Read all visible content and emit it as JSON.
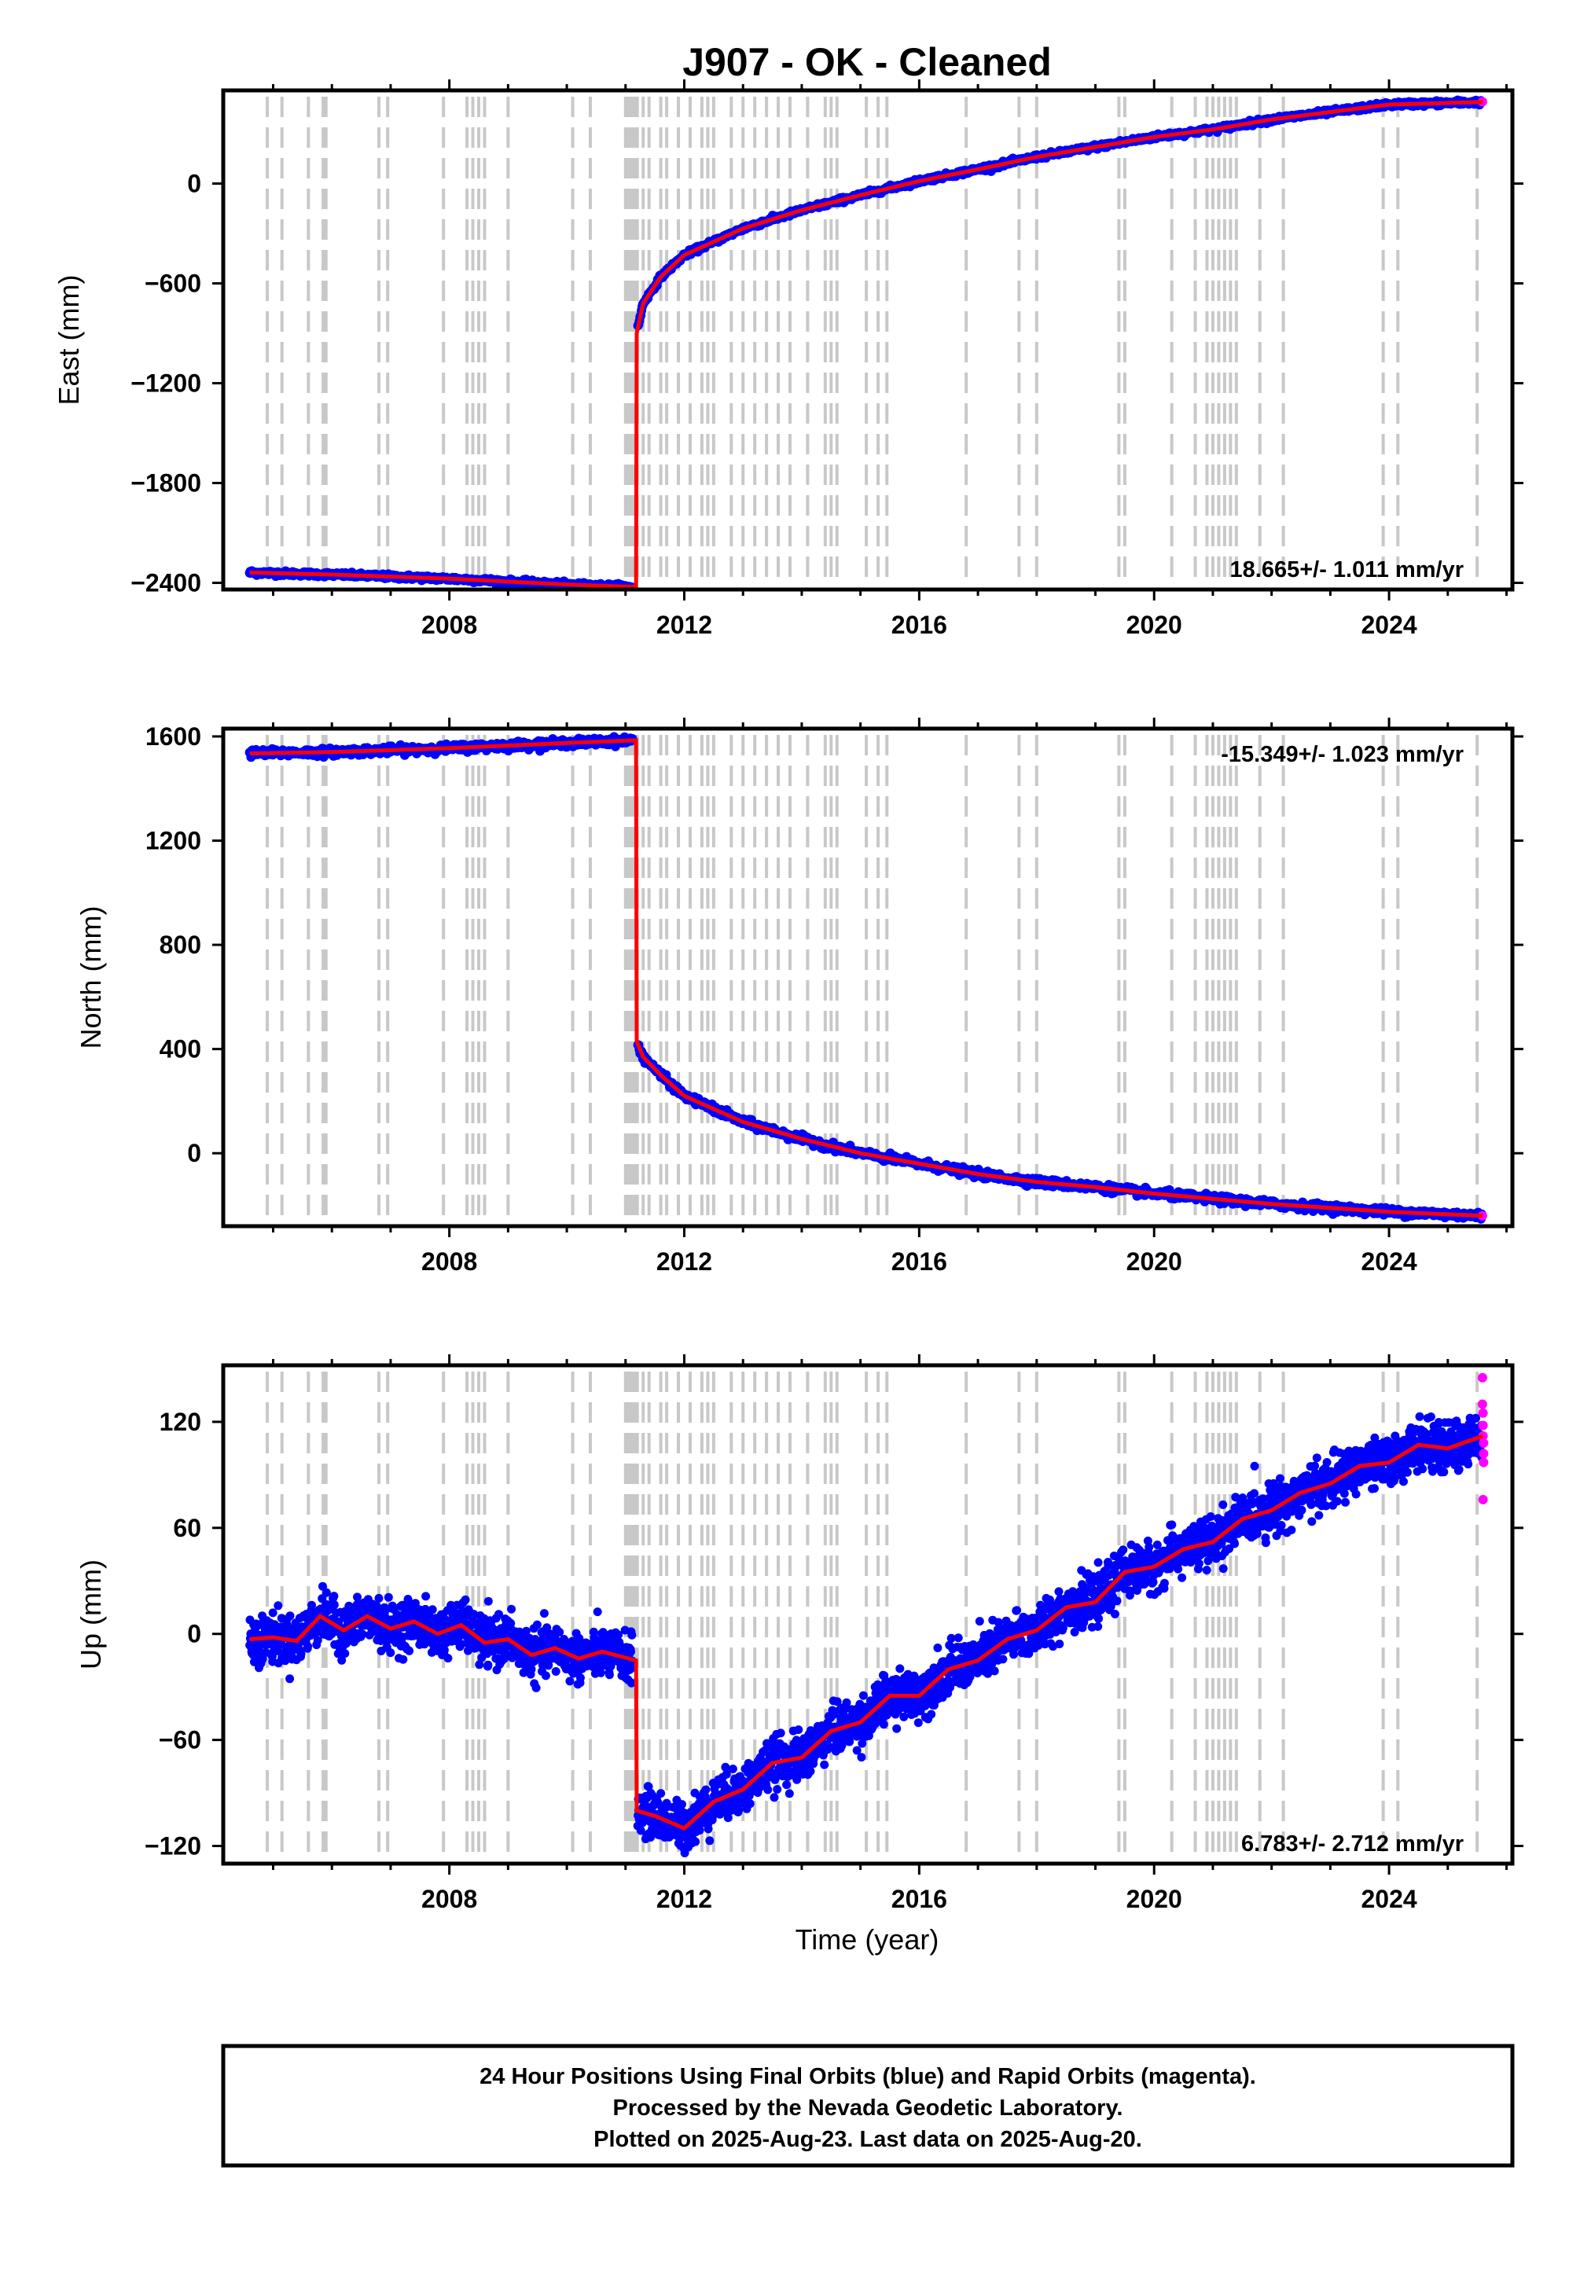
{
  "title": "J907  - OK - Cleaned",
  "xlabel": "Time (year)",
  "footer": {
    "line1": "24 Hour Positions Using Final Orbits (blue) and Rapid Orbits (magenta).",
    "line2": "Processed by the Nevada Geodetic Laboratory.",
    "line3": "Plotted on 2025-Aug-23. Last data on 2025-Aug-20."
  },
  "colors": {
    "final_orbit_points": "#0000ff",
    "rapid_orbit_points": "#ff00ff",
    "model_line": "#ff0000",
    "event_lines": "#c8c8c8"
  },
  "event_years": [
    2004.9,
    2005.15,
    2005.6,
    2005.85,
    2005.9,
    2006.8,
    2006.95,
    2007.9,
    2008.3,
    2008.4,
    2008.5,
    2008.6,
    2009.0,
    2010.1,
    2010.4,
    2011.0,
    2011.05,
    2011.1,
    2011.15,
    2011.2,
    2011.3,
    2011.4,
    2011.6,
    2011.7,
    2011.9,
    2012.1,
    2012.3,
    2012.4,
    2012.5,
    2012.8,
    2013.0,
    2013.2,
    2013.4,
    2013.6,
    2013.8,
    2014.1,
    2014.4,
    2014.5,
    2014.6,
    2015.1,
    2015.3,
    2015.45,
    2016.8,
    2017.7,
    2018.0,
    2019.4,
    2019.5,
    2020.3,
    2020.7,
    2020.9,
    2021.0,
    2021.1,
    2021.2,
    2021.3,
    2021.4,
    2021.8,
    2022.2,
    2023.9,
    2024.15,
    2025.5
  ],
  "chart_data": [
    {
      "type": "scatter",
      "panel": "east",
      "ylabel": "East (mm)",
      "xlim": [
        2004.15,
        2026.1
      ],
      "ylim": [
        -2440,
        560
      ],
      "xticks": [
        "2008",
        "2012",
        "2016",
        "2020",
        "2024"
      ],
      "yticks": [
        "0",
        "−600",
        "−1200",
        "−1800",
        "−2400"
      ],
      "ytick_values": [
        0,
        -600,
        -1200,
        -1800,
        -2400
      ],
      "rate_label": "18.665+/- 1.011 mm/yr",
      "rate_position": "bottom-right",
      "model": [
        [
          2004.6,
          -2338
        ],
        [
          2006.0,
          -2350
        ],
        [
          2008.0,
          -2375
        ],
        [
          2010.0,
          -2410
        ],
        [
          2011.18,
          -2425
        ],
        [
          2011.19,
          -900
        ],
        [
          2011.3,
          -720
        ],
        [
          2011.6,
          -560
        ],
        [
          2012.0,
          -430
        ],
        [
          2013.0,
          -270
        ],
        [
          2014.0,
          -160
        ],
        [
          2015.0,
          -70
        ],
        [
          2016.0,
          15
        ],
        [
          2017.0,
          85
        ],
        [
          2018.0,
          160
        ],
        [
          2019.0,
          220
        ],
        [
          2020.0,
          280
        ],
        [
          2021.0,
          325
        ],
        [
          2022.0,
          385
        ],
        [
          2023.0,
          430
        ],
        [
          2024.0,
          475
        ],
        [
          2025.6,
          490
        ]
      ],
      "rapid_orbits": [
        [
          2025.59,
          492
        ]
      ]
    },
    {
      "type": "scatter",
      "panel": "north",
      "ylabel": "North (mm)",
      "xlim": [
        2004.15,
        2026.1
      ],
      "ylim": [
        -280,
        1630
      ],
      "xticks": [
        "2008",
        "2012",
        "2016",
        "2020",
        "2024"
      ],
      "yticks": [
        "1600",
        "1200",
        "800",
        "400",
        "0"
      ],
      "ytick_values": [
        1600,
        1200,
        800,
        400,
        0
      ],
      "rate_label": "-15.349+/- 1.023 mm/yr",
      "rate_position": "top-right",
      "model": [
        [
          2004.6,
          1535
        ],
        [
          2006.0,
          1540
        ],
        [
          2008.0,
          1555
        ],
        [
          2010.0,
          1575
        ],
        [
          2011.18,
          1585
        ],
        [
          2011.19,
          430
        ],
        [
          2011.3,
          370
        ],
        [
          2011.6,
          300
        ],
        [
          2012.0,
          220
        ],
        [
          2013.0,
          120
        ],
        [
          2014.0,
          55
        ],
        [
          2015.0,
          0
        ],
        [
          2016.0,
          -40
        ],
        [
          2017.0,
          -80
        ],
        [
          2018.0,
          -110
        ],
        [
          2019.0,
          -130
        ],
        [
          2020.0,
          -155
        ],
        [
          2021.0,
          -175
        ],
        [
          2022.0,
          -195
        ],
        [
          2023.0,
          -210
        ],
        [
          2024.0,
          -225
        ],
        [
          2025.6,
          -240
        ]
      ],
      "rapid_orbits": [
        [
          2025.59,
          -240
        ]
      ]
    },
    {
      "type": "scatter",
      "panel": "up",
      "ylabel": "Up (mm)",
      "xlim": [
        2004.15,
        2026.1
      ],
      "ylim": [
        -130,
        152
      ],
      "xticks": [
        "2008",
        "2012",
        "2016",
        "2020",
        "2024"
      ],
      "yticks": [
        "120",
        "60",
        "0",
        "−60",
        "−120"
      ],
      "ytick_values": [
        120,
        60,
        0,
        -60,
        -120
      ],
      "rate_label": "6.783+/- 2.712 mm/yr",
      "rate_position": "bottom-right",
      "model": [
        [
          2004.6,
          -3
        ],
        [
          2005.0,
          -2
        ],
        [
          2005.4,
          -4
        ],
        [
          2005.8,
          10
        ],
        [
          2006.2,
          2
        ],
        [
          2006.6,
          10
        ],
        [
          2007.0,
          3
        ],
        [
          2007.4,
          7
        ],
        [
          2007.8,
          0
        ],
        [
          2008.2,
          5
        ],
        [
          2008.6,
          -5
        ],
        [
          2009.0,
          -3
        ],
        [
          2009.4,
          -12
        ],
        [
          2009.8,
          -8
        ],
        [
          2010.2,
          -14
        ],
        [
          2010.6,
          -10
        ],
        [
          2011.18,
          -15
        ],
        [
          2011.19,
          -100
        ],
        [
          2011.5,
          -103
        ],
        [
          2012.0,
          -110
        ],
        [
          2012.5,
          -95
        ],
        [
          2013.0,
          -88
        ],
        [
          2013.5,
          -73
        ],
        [
          2014.0,
          -70
        ],
        [
          2014.5,
          -55
        ],
        [
          2015.0,
          -50
        ],
        [
          2015.5,
          -35
        ],
        [
          2016.0,
          -35
        ],
        [
          2016.5,
          -20
        ],
        [
          2017.0,
          -15
        ],
        [
          2017.5,
          -3
        ],
        [
          2018.0,
          2
        ],
        [
          2018.5,
          15
        ],
        [
          2019.0,
          18
        ],
        [
          2019.5,
          35
        ],
        [
          2020.0,
          38
        ],
        [
          2020.5,
          48
        ],
        [
          2021.0,
          52
        ],
        [
          2021.5,
          65
        ],
        [
          2022.0,
          70
        ],
        [
          2022.5,
          80
        ],
        [
          2023.0,
          85
        ],
        [
          2023.5,
          95
        ],
        [
          2024.0,
          97
        ],
        [
          2024.5,
          107
        ],
        [
          2025.0,
          105
        ],
        [
          2025.6,
          112
        ]
      ],
      "rapid_orbits": [
        [
          2025.59,
          145
        ],
        [
          2025.59,
          130
        ],
        [
          2025.6,
          125
        ],
        [
          2025.6,
          118
        ],
        [
          2025.6,
          112
        ],
        [
          2025.61,
          108
        ],
        [
          2025.61,
          102
        ],
        [
          2025.61,
          97
        ],
        [
          2025.6,
          76
        ]
      ]
    }
  ]
}
